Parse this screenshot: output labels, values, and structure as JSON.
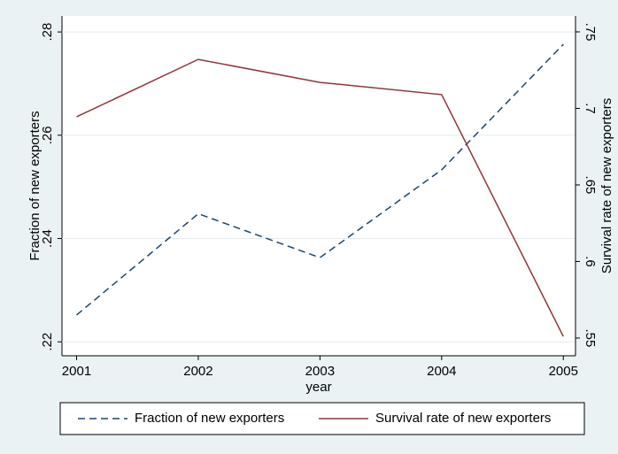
{
  "chart_data": {
    "type": "line",
    "x": [
      2001,
      2002,
      2003,
      2004,
      2005
    ],
    "xlim": [
      2000.88,
      2005.1
    ],
    "xticks": [
      2001,
      2002,
      2003,
      2004,
      2005
    ],
    "xlabel": "year",
    "ylabel": "Fraction of new exporters",
    "y2label": "Survival rate of new exporters",
    "ylim": [
      0.2173,
      0.2831
    ],
    "yticks": [
      {
        "value": 0.22,
        "label": ".22"
      },
      {
        "value": 0.24,
        "label": ".24"
      },
      {
        "value": 0.26,
        "label": ".26"
      },
      {
        "value": 0.28,
        "label": ".28"
      }
    ],
    "y2lim": [
      0.5384,
      0.7604
    ],
    "y2ticks": [
      {
        "value": 0.55,
        "label": ".55"
      },
      {
        "value": 0.6,
        "label": ".6"
      },
      {
        "value": 0.65,
        "label": ".65"
      },
      {
        "value": 0.7,
        "label": ".7"
      },
      {
        "value": 0.75,
        "label": ".75"
      }
    ],
    "grid": true,
    "legend": "bottom",
    "series": [
      {
        "name": "Fraction of new exporters",
        "color": "#1a476f",
        "dash": "dashed",
        "values": [
          0.2252,
          0.2448,
          0.2363,
          0.2533,
          0.2776
        ]
      },
      {
        "name": "Survival rate of new exporters",
        "color": "#90353b",
        "dash": "solid",
        "axis": "y2",
        "values": [
          0.6945,
          0.732,
          0.717,
          0.709,
          0.551
        ]
      }
    ]
  }
}
